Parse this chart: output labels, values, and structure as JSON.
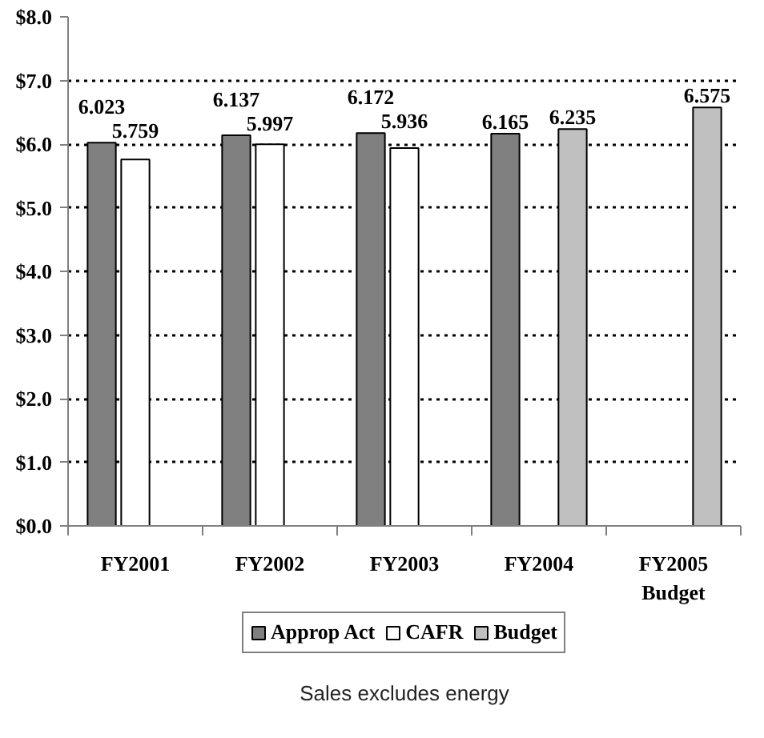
{
  "chart_data": {
    "type": "bar",
    "categories": [
      "FY2001",
      "FY2002",
      "FY2003",
      "FY2004",
      "FY2005 Budget"
    ],
    "series": [
      {
        "name": "Approp Act",
        "color": "#808080",
        "values": [
          6.023,
          6.137,
          6.172,
          6.165,
          null
        ]
      },
      {
        "name": "CAFR",
        "color": "#ffffff",
        "values": [
          5.759,
          5.997,
          5.936,
          null,
          null
        ]
      },
      {
        "name": "Budget",
        "color": "#c0c0c0",
        "values": [
          null,
          null,
          null,
          6.235,
          6.575
        ]
      }
    ],
    "ylim": [
      0,
      8
    ],
    "yticks": [
      {
        "value": 0,
        "label": "$0.0"
      },
      {
        "value": 1,
        "label": "$1.0"
      },
      {
        "value": 2,
        "label": "$2.0"
      },
      {
        "value": 3,
        "label": "$3.0"
      },
      {
        "value": 4,
        "label": "$4.0"
      },
      {
        "value": 5,
        "label": "$5.0"
      },
      {
        "value": 6,
        "label": "$6.0"
      },
      {
        "value": 7,
        "label": "$7.0"
      },
      {
        "value": 8,
        "label": "$8.0"
      }
    ],
    "grid": "y",
    "legend": "bottom",
    "data_labels": true,
    "annotations": [
      "Sales excludes energy"
    ]
  }
}
